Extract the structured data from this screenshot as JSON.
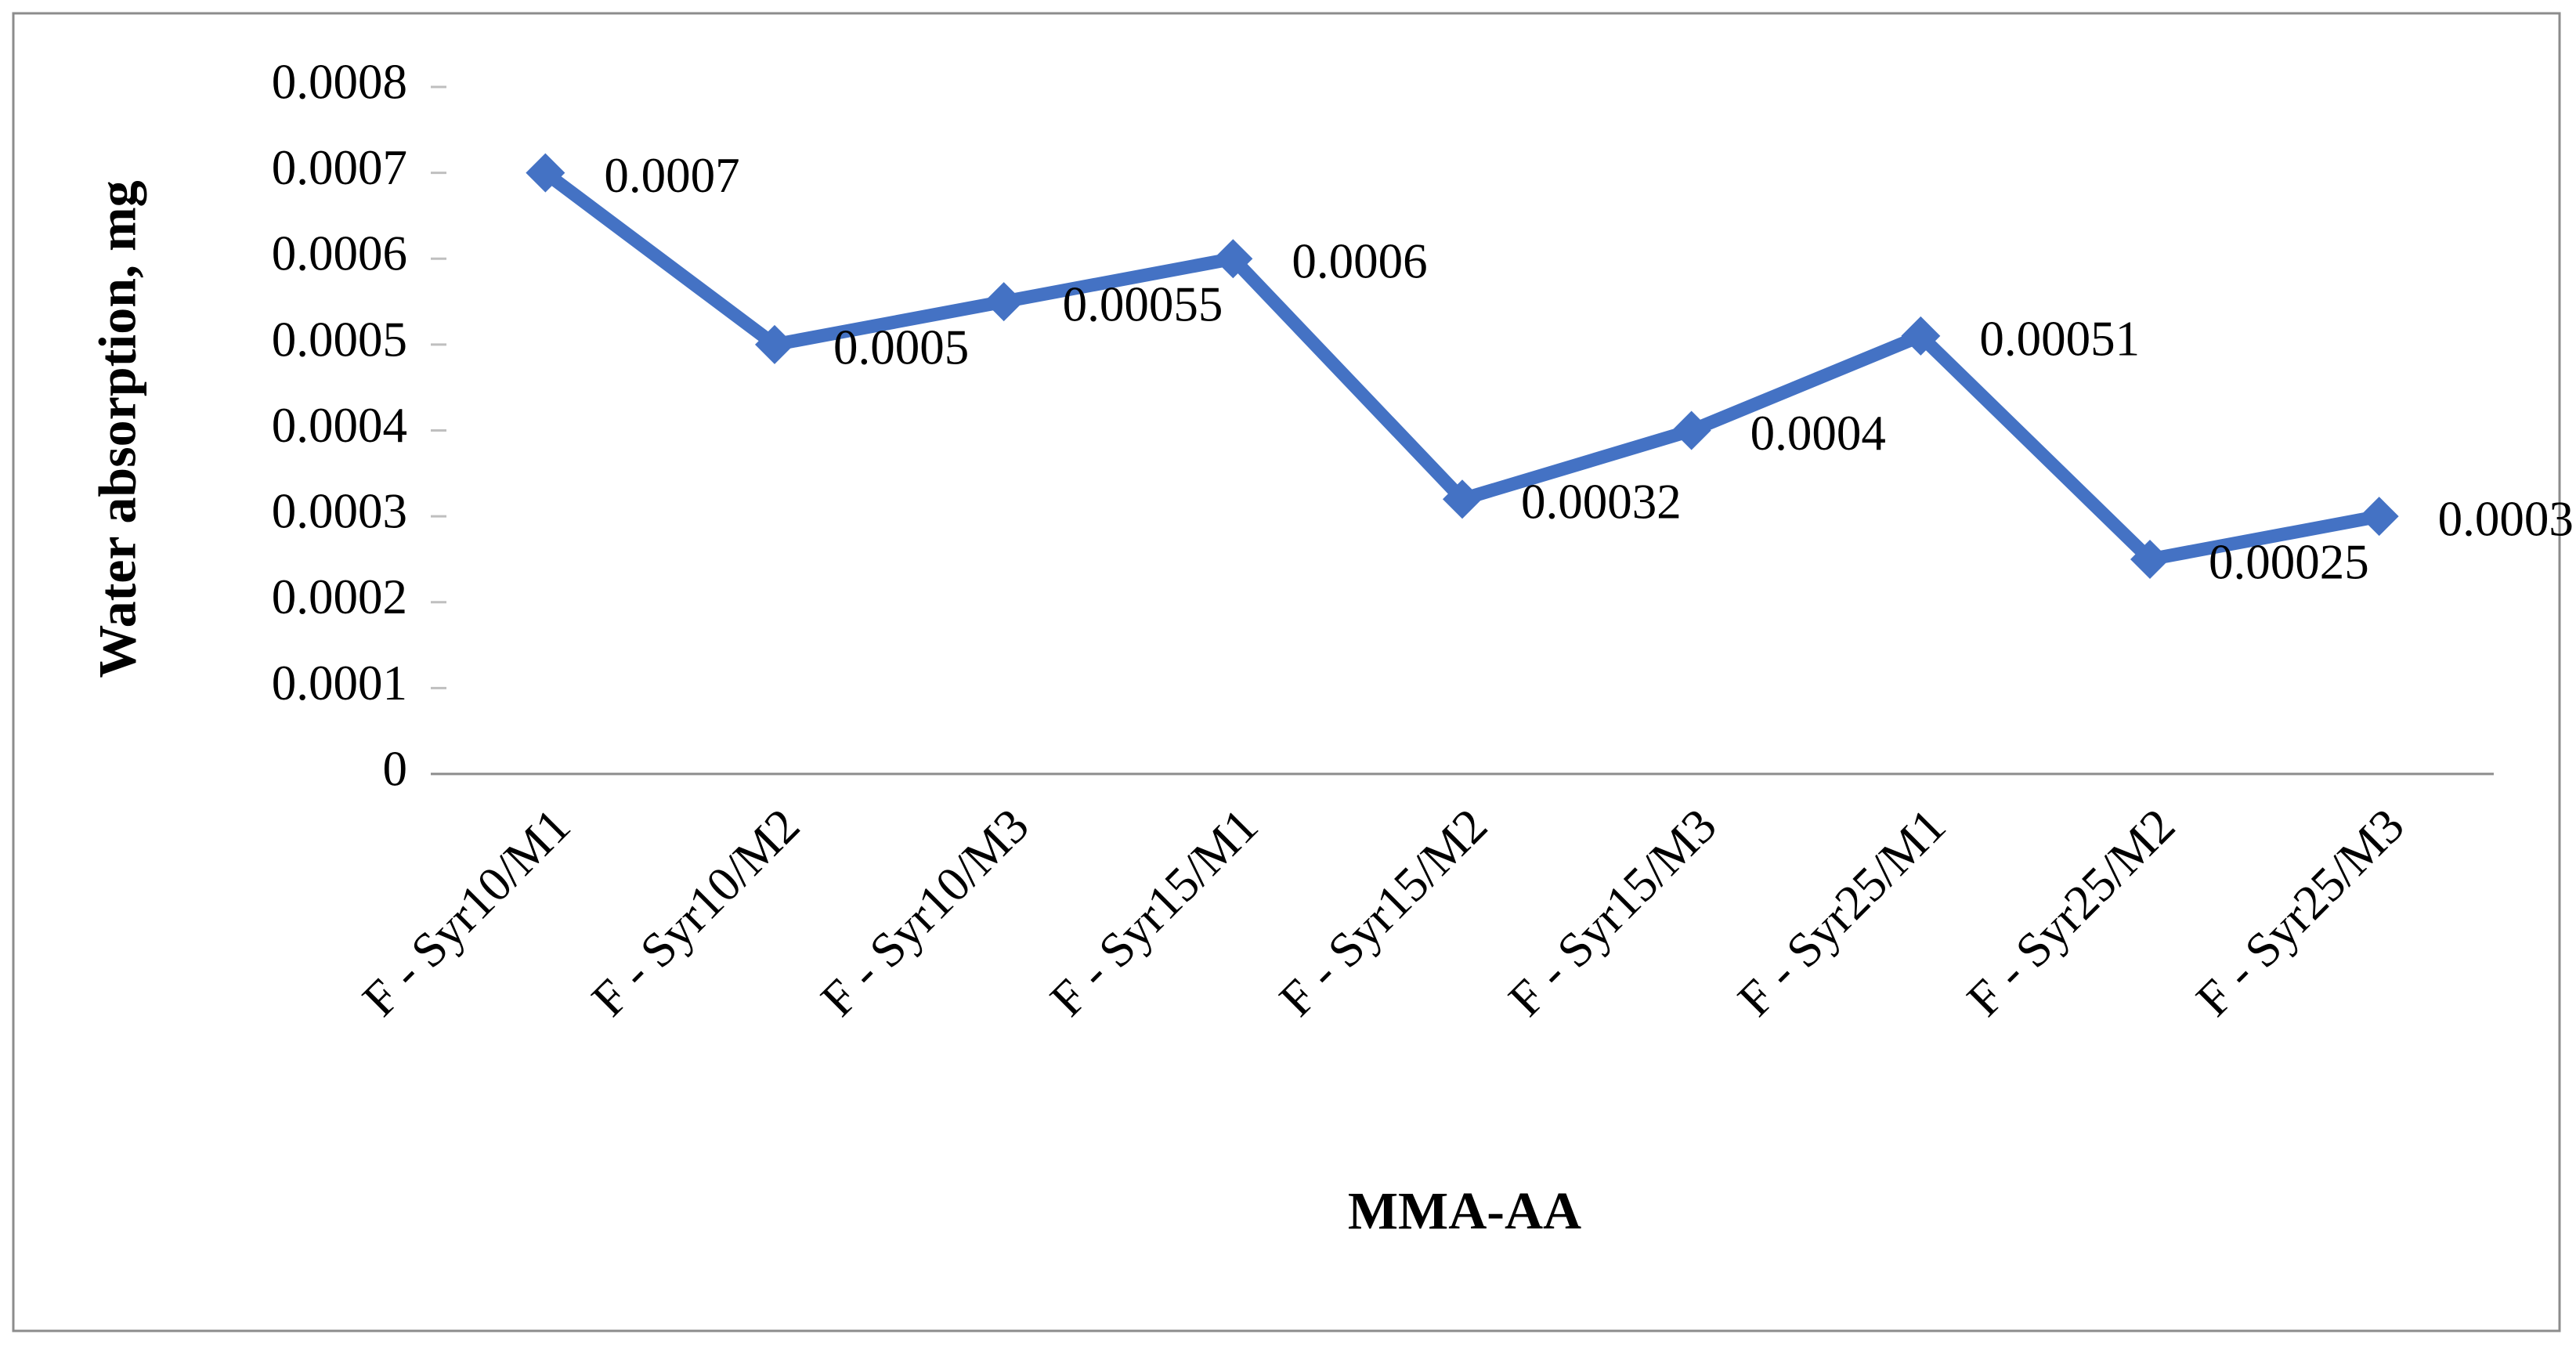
{
  "chart_data": {
    "type": "line",
    "x_label": "MMA-AA",
    "y_label": "Water absorption, mg",
    "categories": [
      "F - Syr10/M1",
      "F - Syr10/M2",
      "F - Syr10/M3",
      "F - Syr15/M1",
      "F - Syr15/M2",
      "F - Syr15/M3",
      "F - Syr25/M1",
      "F - Syr25/M2",
      "F - Syr25/M3"
    ],
    "values": [
      0.0007,
      0.0005,
      0.00055,
      0.0006,
      0.00032,
      0.0004,
      0.00051,
      0.00025,
      0.0003
    ],
    "color": "#4472c4",
    "ylim": [
      0,
      0.0008
    ],
    "yticks": [
      0,
      0.0001,
      0.0002,
      0.0003,
      0.0004,
      0.0005,
      0.0006,
      0.0007,
      0.0008
    ],
    "grid": false
  }
}
